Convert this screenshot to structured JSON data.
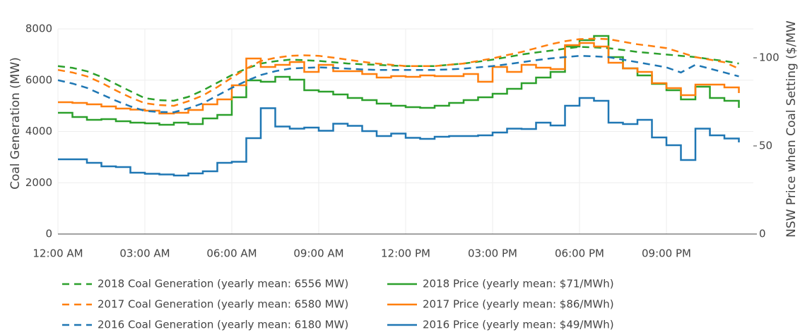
{
  "chart_data": {
    "type": "line",
    "ylabel": "Coal Generation (MW)",
    "y2label": "NSW Price when Coal Setting ($/MW",
    "x": [
      0,
      0.5,
      1,
      1.5,
      2,
      2.5,
      3,
      3.5,
      4,
      4.5,
      5,
      5.5,
      6,
      6.5,
      7,
      7.5,
      8,
      8.5,
      9,
      9.5,
      10,
      10.5,
      11,
      11.5,
      12,
      12.5,
      13,
      13.5,
      14,
      14.5,
      15,
      15.5,
      16,
      16.5,
      17,
      17.5,
      18,
      18.5,
      19,
      19.5,
      20,
      20.5,
      21,
      21.5,
      22,
      22.5,
      23,
      23.5
    ],
    "xlim": [
      0,
      24
    ],
    "xticks": [
      {
        "value": 0,
        "label": "12:00 AM"
      },
      {
        "value": 3,
        "label": "03:00 AM"
      },
      {
        "value": 6,
        "label": "06:00 AM"
      },
      {
        "value": 9,
        "label": "09:00 AM"
      },
      {
        "value": 12,
        "label": "12:00 PM"
      },
      {
        "value": 15,
        "label": "03:00 PM"
      },
      {
        "value": 18,
        "label": "06:00 PM"
      },
      {
        "value": 21,
        "label": "09:00 PM"
      }
    ],
    "ylim": [
      0,
      8000
    ],
    "yticks": [
      0,
      2000,
      4000,
      6000,
      8000
    ],
    "y2lim": [
      0,
      116.4
    ],
    "y2ticks": [
      0,
      50,
      100
    ],
    "grid": true,
    "legend": "bottom",
    "series": [
      {
        "name": "2018 Coal Generation (yearly mean: 6556 MW)",
        "color": "#2ca02c",
        "dash": "dash",
        "values": [
          6550,
          6480,
          6350,
          6130,
          5850,
          5570,
          5300,
          5220,
          5200,
          5350,
          5600,
          5900,
          6200,
          6450,
          6650,
          6740,
          6800,
          6780,
          6750,
          6700,
          6650,
          6620,
          6600,
          6570,
          6550,
          6550,
          6550,
          6600,
          6650,
          6720,
          6800,
          6900,
          7000,
          7080,
          7150,
          7230,
          7300,
          7280,
          7250,
          7180,
          7100,
          7050,
          7000,
          6950,
          6900,
          6820,
          6750,
          6650
        ]
      },
      {
        "name": "2018 Price (yearly mean: $71/MWh)",
        "color": "#2ca02c",
        "axis": "y2",
        "line_shape": "hv",
        "values": [
          68.8,
          66.4,
          64.8,
          65.2,
          64.0,
          63.2,
          62.8,
          62.0,
          63.2,
          62.4,
          65.6,
          67.6,
          77.6,
          87.2,
          86.4,
          89.2,
          87.6,
          81.6,
          80.8,
          79.2,
          77.2,
          76.0,
          74.0,
          72.8,
          72.0,
          71.6,
          72.8,
          74.4,
          76.0,
          77.6,
          79.6,
          82.4,
          85.6,
          88.8,
          92.0,
          106.4,
          110.0,
          112.4,
          100.4,
          94.0,
          90.0,
          85.2,
          81.6,
          76.4,
          83.6,
          77.2,
          75.6,
          71.6
        ]
      },
      {
        "name": "2017 Coal Generation (yearly mean: 6580 MW)",
        "color": "#ff7f0e",
        "dash": "dash",
        "values": [
          6400,
          6300,
          6150,
          5900,
          5600,
          5330,
          5100,
          5030,
          5000,
          5180,
          5400,
          5730,
          6100,
          6450,
          6750,
          6870,
          6950,
          6970,
          6950,
          6880,
          6800,
          6720,
          6650,
          6600,
          6550,
          6550,
          6550,
          6600,
          6650,
          6750,
          6850,
          6980,
          7100,
          7250,
          7400,
          7520,
          7600,
          7620,
          7600,
          7500,
          7400,
          7330,
          7250,
          7080,
          6900,
          6800,
          6700,
          6450
        ]
      },
      {
        "name": "2017 Price (yearly mean: $86/MWh)",
        "color": "#ff7f0e",
        "axis": "y2",
        "line_shape": "hv",
        "values": [
          74.8,
          74.4,
          73.6,
          72.4,
          71.2,
          70.6,
          70.0,
          68.4,
          68.8,
          70.4,
          73.6,
          76.4,
          84.4,
          99.6,
          94.8,
          96.0,
          97.6,
          92.0,
          96.0,
          92.4,
          92.4,
          90.8,
          88.8,
          89.6,
          89.2,
          90.0,
          89.6,
          89.6,
          90.8,
          86.4,
          94.8,
          92.0,
          96.0,
          94.4,
          93.6,
          107.2,
          108.4,
          106.4,
          97.2,
          94.0,
          92.0,
          85.6,
          82.8,
          78.8,
          84.8,
          84.8,
          83.2,
          80.0
        ]
      },
      {
        "name": "2016 Coal Generation (yearly mean: 6180 MW)",
        "color": "#1f77b4",
        "dash": "dash",
        "values": [
          6000,
          5870,
          5700,
          5450,
          5200,
          4980,
          4800,
          4760,
          4750,
          4900,
          5100,
          5400,
          5700,
          5970,
          6200,
          6350,
          6450,
          6480,
          6500,
          6480,
          6450,
          6420,
          6400,
          6400,
          6400,
          6400,
          6400,
          6420,
          6450,
          6500,
          6550,
          6620,
          6700,
          6780,
          6850,
          6900,
          6950,
          6930,
          6900,
          6800,
          6700,
          6600,
          6500,
          6300,
          6600,
          6450,
          6300,
          6150
        ]
      },
      {
        "name": "2016 Price (yearly mean: $49/MWh)",
        "color": "#1f77b4",
        "axis": "y2",
        "line_shape": "hv",
        "values": [
          42.4,
          42.4,
          40.4,
          38.4,
          38.0,
          34.8,
          34.2,
          33.8,
          33.2,
          34.4,
          35.6,
          40.4,
          41.0,
          54.4,
          71.4,
          61.0,
          59.8,
          60.4,
          58.6,
          62.6,
          61.4,
          58.4,
          55.6,
          57.0,
          54.6,
          54.0,
          55.2,
          55.6,
          55.6,
          56.0,
          57.6,
          59.8,
          59.6,
          63.2,
          61.6,
          72.8,
          77.2,
          75.6,
          63.2,
          62.4,
          64.8,
          54.8,
          50.4,
          42.0,
          59.8,
          56.0,
          54.2,
          52.0
        ]
      }
    ]
  }
}
